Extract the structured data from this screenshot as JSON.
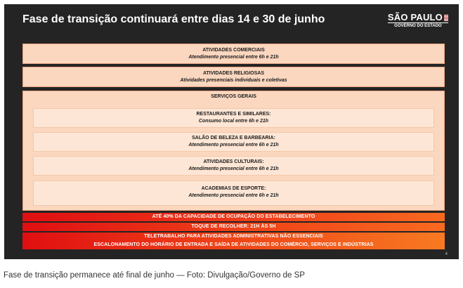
{
  "slide": {
    "title": "Fase de transição continuará entre dias 14 e 30 de junho",
    "logo": {
      "name": "SÃO PAULO",
      "sub": "GOVERNO DO ESTADO"
    },
    "page_number": "4"
  },
  "panels": {
    "comerciais": {
      "title": "ATIVIDADES COMERCIAIS",
      "sub": "Atendimento presencial entre 6h e 21h"
    },
    "religiosas": {
      "title": "ATIVIDADES RELIGIOSAS",
      "sub": "Atividades presenciais individuais e coletivas"
    },
    "servicos": {
      "title": "SERVIÇOS GERAIS",
      "items": [
        {
          "title": "RESTAURANTES E SIMILARES:",
          "sub": "Consumo local entre 6h e 21h"
        },
        {
          "title": "SALÃO DE BELEZA E BARBEARIA:",
          "sub": "Atendimento presencial entre 6h e 21h"
        },
        {
          "title": "ATIVIDADES CULTURAIS:",
          "sub": "Atendimento presencial entre 6h e 21h"
        },
        {
          "title": "ACADEMIAS DE ESPORTE:",
          "sub": "Atendimento presencial entre 6h e 21h"
        }
      ]
    }
  },
  "bands": {
    "capacidade": "ATÉ 40% DA CAPACIDADE DE OCUPAÇÃO DO ESTABELECIMENTO",
    "toque": "TOQUE DE RECOLHER: 21H ÀS 5H",
    "teletrabalho": "TELETRABALHO PARA ATIVIDADES ADMINISTRATIVAS NÃO ESSENCIAIS",
    "escalonamento": "ESCALONAMENTO DO HORÁRIO DE ENTRADA E SAÍDA DE ATIVIDADES DO COMÉRCIO, SERVIÇOS E INDÚSTRIAS"
  },
  "caption": "Fase de transição permanece até final de junho — Foto: Divulgação/Governo de SP",
  "colors": {
    "slide_bg": "#242424",
    "panel": "#fbd7bf",
    "card": "#fde6d5",
    "band_red": "#e00f12",
    "band_orange": "#f86a1f"
  }
}
